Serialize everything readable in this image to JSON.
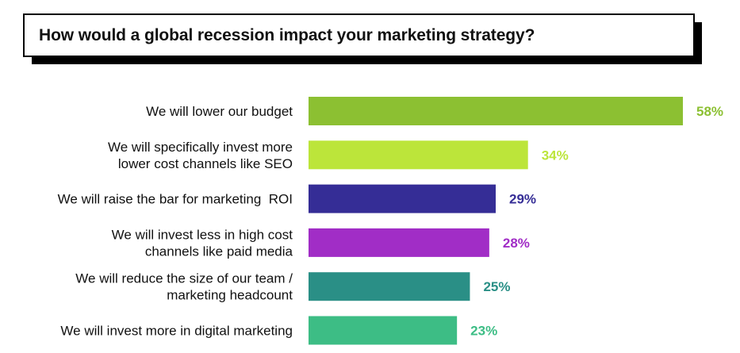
{
  "title": "How would a global recession impact your marketing strategy?",
  "chart_data": {
    "type": "bar",
    "orientation": "horizontal",
    "title": "How would a global recession impact your marketing strategy?",
    "categories": [
      [
        "We will lower our budget"
      ],
      [
        "We will specifically invest more",
        "lower cost channels like SEO"
      ],
      [
        "We will raise the bar for marketing  ROI"
      ],
      [
        "We will invest less in high cost",
        "channels like paid media"
      ],
      [
        "We will reduce the size of our team /",
        "marketing headcount"
      ],
      [
        "We will invest more in digital marketing"
      ]
    ],
    "values": [
      58,
      34,
      29,
      28,
      25,
      23
    ],
    "value_labels": [
      "58%",
      "34%",
      "29%",
      "28%",
      "25%",
      "23%"
    ],
    "colors": [
      "#8cc032",
      "#bce53a",
      "#352d96",
      "#a12dc6",
      "#2a8f86",
      "#3dbd85"
    ],
    "xlim": [
      0,
      58
    ],
    "grid": false,
    "legend": "none"
  }
}
